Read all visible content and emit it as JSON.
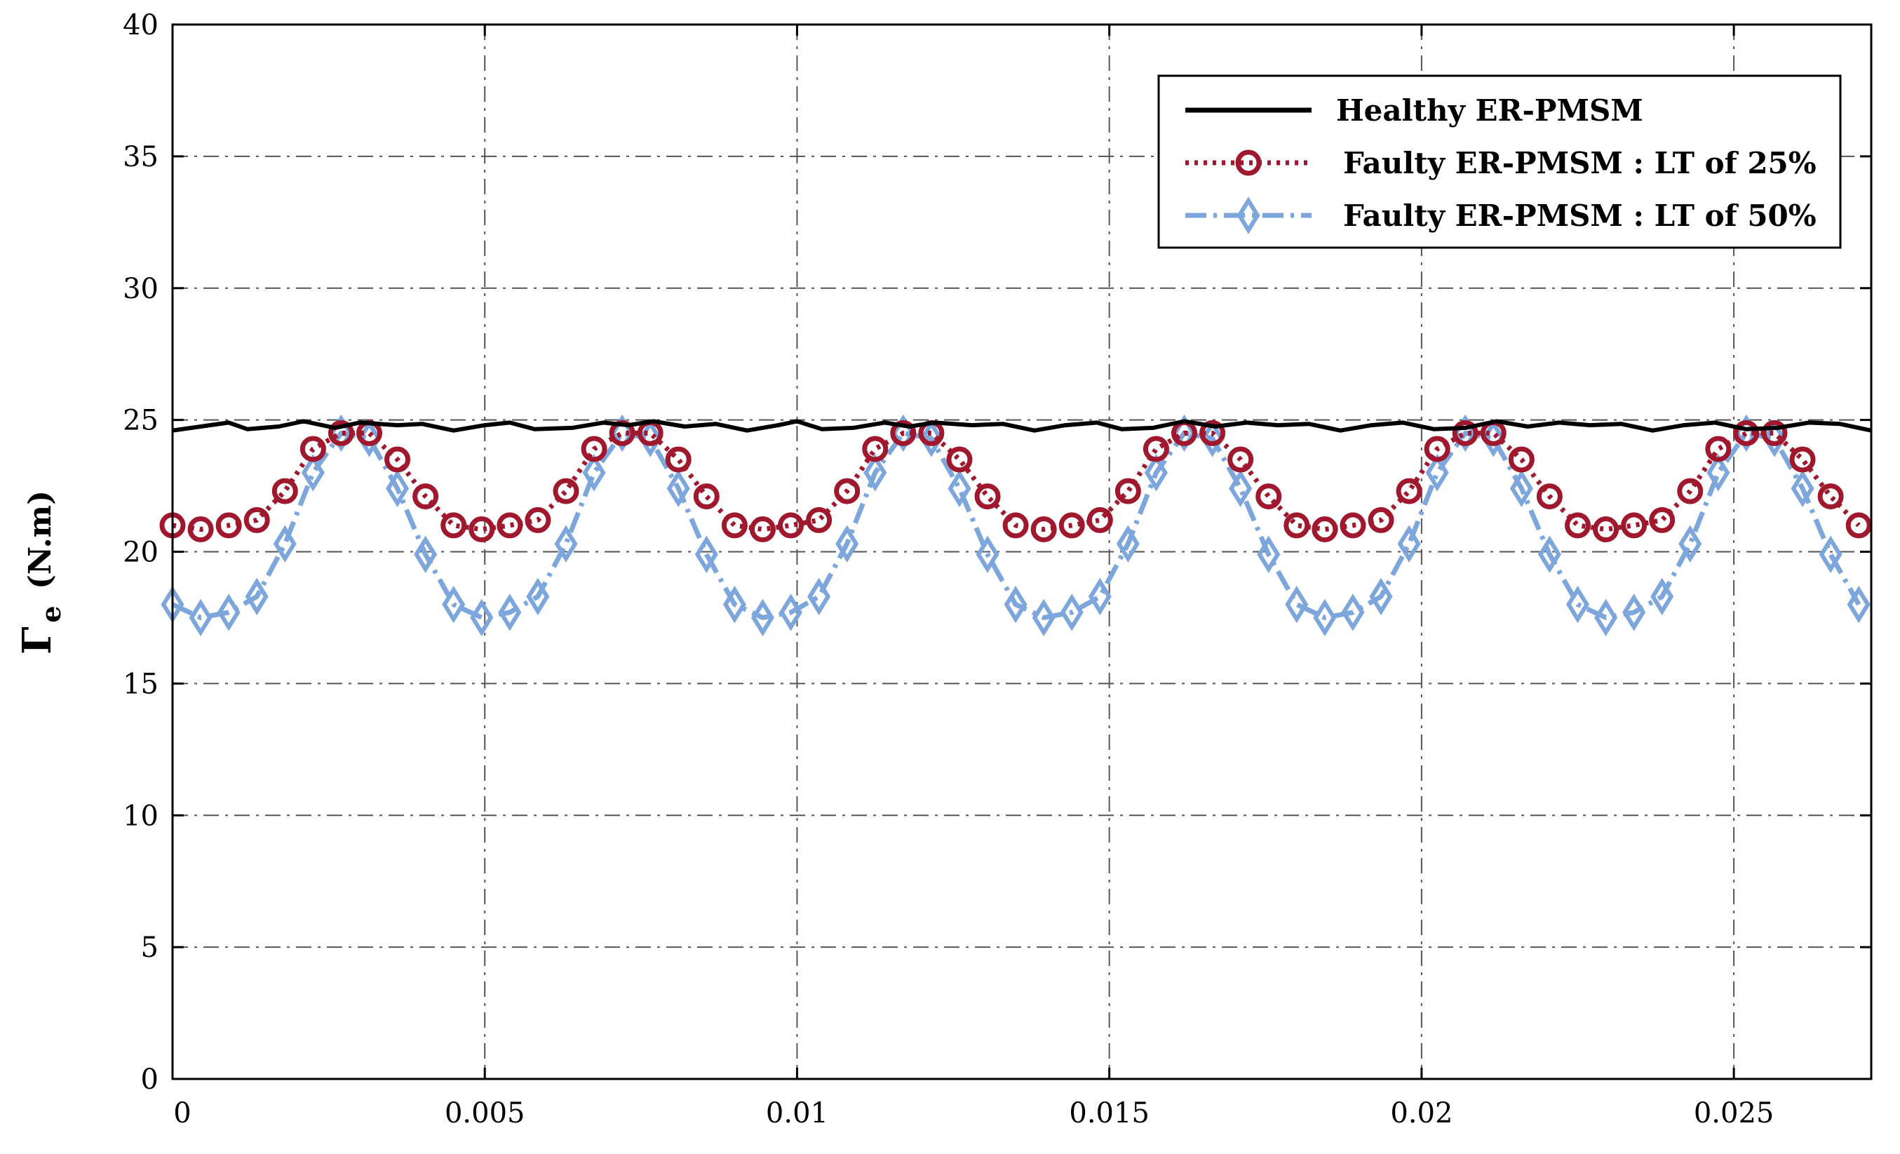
{
  "chart_data": {
    "type": "line",
    "title": "",
    "xlabel": "",
    "ylabel": {
      "symbol": "Γ",
      "subscript": "e",
      "unit": "(N.m)"
    },
    "xlim": [
      0,
      0.0272
    ],
    "ylim": [
      0,
      40
    ],
    "xticks": [
      0,
      0.005,
      0.01,
      0.015,
      0.02,
      0.025
    ],
    "xtick_labels": [
      "0",
      "0.005",
      "0.01",
      "0.015",
      "0.02",
      "0.025"
    ],
    "yticks": [
      0,
      5,
      10,
      15,
      20,
      25,
      30,
      35,
      40
    ],
    "ytick_labels": [
      "0",
      "5",
      "10",
      "15",
      "20",
      "25",
      "30",
      "35",
      "40"
    ],
    "grid": true,
    "legend_position": "top-right",
    "series": [
      {
        "name": "Healthy ER-PMSM",
        "color": "#000000",
        "style": "solid",
        "marker": "none",
        "x": [
          0,
          0.0006,
          0.0009,
          0.0012,
          0.0017,
          0.0021,
          0.0026,
          0.003,
          0.0036,
          0.004,
          0.0045,
          0.005,
          0.0054,
          0.0058,
          0.0064,
          0.0069,
          0.0073,
          0.0077,
          0.0082,
          0.0087,
          0.0092,
          0.0097,
          0.01,
          0.0104,
          0.0109,
          0.0114,
          0.0118,
          0.0122,
          0.0128,
          0.0133,
          0.0138,
          0.0143,
          0.0148,
          0.0152,
          0.0157,
          0.0162,
          0.0167,
          0.0172,
          0.0177,
          0.0182,
          0.0187,
          0.0192,
          0.0197,
          0.0202,
          0.0207,
          0.0212,
          0.0217,
          0.0222,
          0.0227,
          0.0232,
          0.0237,
          0.0242,
          0.0247,
          0.0252,
          0.0257,
          0.0262,
          0.0267,
          0.0272
        ],
        "y": [
          24.6,
          24.8,
          24.9,
          24.65,
          24.75,
          24.95,
          24.7,
          24.9,
          24.8,
          24.85,
          24.6,
          24.8,
          24.9,
          24.65,
          24.7,
          24.9,
          24.8,
          24.95,
          24.75,
          24.85,
          24.6,
          24.8,
          24.95,
          24.65,
          24.7,
          24.9,
          24.75,
          24.9,
          24.8,
          24.85,
          24.6,
          24.8,
          24.9,
          24.65,
          24.7,
          24.95,
          24.75,
          24.9,
          24.8,
          24.85,
          24.6,
          24.8,
          24.9,
          24.65,
          24.7,
          24.95,
          24.75,
          24.9,
          24.8,
          24.85,
          24.6,
          24.8,
          24.9,
          24.65,
          24.7,
          24.9,
          24.85,
          24.6
        ]
      },
      {
        "name": "Faulty ER-PMSM : LT of 25%",
        "color": "#A0182D",
        "style": "dotted",
        "marker": "circle",
        "x": [
          0,
          0.00045,
          0.0009,
          0.00135,
          0.0018,
          0.00225,
          0.0027,
          0.00315,
          0.0036,
          0.00405,
          0.0045,
          0.00495,
          0.0054,
          0.00585,
          0.0063,
          0.00675,
          0.0072,
          0.00765,
          0.0081,
          0.00855,
          0.009,
          0.00945,
          0.0099,
          0.01035,
          0.0108,
          0.01125,
          0.0117,
          0.01215,
          0.0126,
          0.01305,
          0.0135,
          0.01395,
          0.0144,
          0.01485,
          0.0153,
          0.01575,
          0.0162,
          0.01665,
          0.0171,
          0.01755,
          0.018,
          0.01845,
          0.0189,
          0.01935,
          0.0198,
          0.02025,
          0.0207,
          0.02115,
          0.0216,
          0.02205,
          0.0225,
          0.02295,
          0.0234,
          0.02385,
          0.0243,
          0.02475,
          0.0252,
          0.02565,
          0.0261,
          0.02655,
          0.027
        ],
        "y": [
          21.0,
          20.85,
          21.0,
          21.2,
          22.3,
          23.9,
          24.5,
          24.5,
          23.5,
          22.1,
          21.0,
          20.85,
          21.0,
          21.2,
          22.3,
          23.9,
          24.5,
          24.5,
          23.5,
          22.1,
          21.0,
          20.85,
          21.0,
          21.2,
          22.3,
          23.9,
          24.5,
          24.5,
          23.5,
          22.1,
          21.0,
          20.85,
          21.0,
          21.2,
          22.3,
          23.9,
          24.5,
          24.5,
          23.5,
          22.1,
          21.0,
          20.85,
          21.0,
          21.2,
          22.3,
          23.9,
          24.5,
          24.5,
          23.5,
          22.1,
          21.0,
          20.85,
          21.0,
          21.2,
          22.3,
          23.9,
          24.5,
          24.5,
          23.5,
          22.1,
          21.0
        ]
      },
      {
        "name": "Faulty ER-PMSM : LT of 50%",
        "color": "#7DA7DC",
        "style": "dashdot",
        "marker": "diamond",
        "x": [
          0,
          0.00045,
          0.0009,
          0.00135,
          0.0018,
          0.00225,
          0.0027,
          0.00315,
          0.0036,
          0.00405,
          0.0045,
          0.00495,
          0.0054,
          0.00585,
          0.0063,
          0.00675,
          0.0072,
          0.00765,
          0.0081,
          0.00855,
          0.009,
          0.00945,
          0.0099,
          0.01035,
          0.0108,
          0.01125,
          0.0117,
          0.01215,
          0.0126,
          0.01305,
          0.0135,
          0.01395,
          0.0144,
          0.01485,
          0.0153,
          0.01575,
          0.0162,
          0.01665,
          0.0171,
          0.01755,
          0.018,
          0.01845,
          0.0189,
          0.01935,
          0.0198,
          0.02025,
          0.0207,
          0.02115,
          0.0216,
          0.02205,
          0.0225,
          0.02295,
          0.0234,
          0.02385,
          0.0243,
          0.02475,
          0.0252,
          0.02565,
          0.0261,
          0.02655,
          0.027
        ],
        "y": [
          18.0,
          17.5,
          17.7,
          18.3,
          20.3,
          23.0,
          24.5,
          24.3,
          22.4,
          19.9,
          18.0,
          17.5,
          17.7,
          18.3,
          20.3,
          23.0,
          24.5,
          24.3,
          22.4,
          19.9,
          18.0,
          17.5,
          17.7,
          18.3,
          20.3,
          23.0,
          24.5,
          24.3,
          22.4,
          19.9,
          18.0,
          17.5,
          17.7,
          18.3,
          20.3,
          23.0,
          24.5,
          24.3,
          22.4,
          19.9,
          18.0,
          17.5,
          17.7,
          18.3,
          20.3,
          23.0,
          24.5,
          24.3,
          22.4,
          19.9,
          18.0,
          17.5,
          17.7,
          18.3,
          20.3,
          23.0,
          24.5,
          24.3,
          22.4,
          19.9,
          18.0
        ]
      }
    ]
  }
}
